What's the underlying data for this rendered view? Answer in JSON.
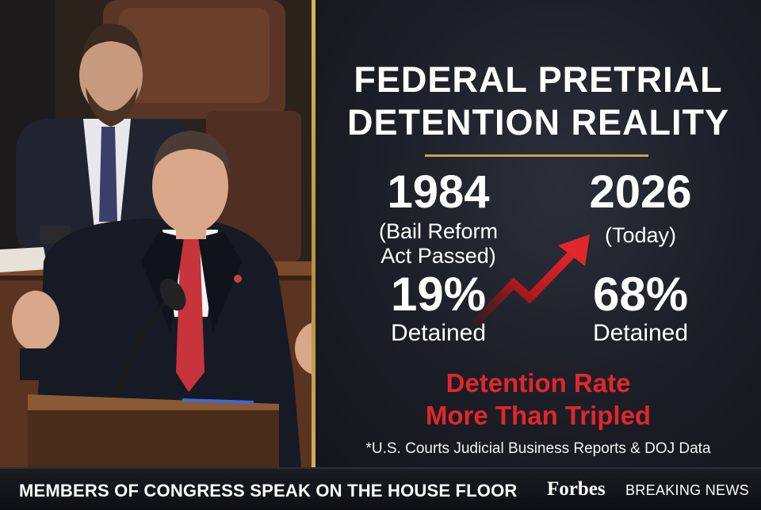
{
  "panel": {
    "title_line1": "FEDERAL PRETRIAL",
    "title_line2": "DETENTION REALITY",
    "left": {
      "year": "1984",
      "label_line1": "(Bail Reform",
      "label_line2": "Act Passed)",
      "percent": "19%",
      "status": "Detained"
    },
    "right": {
      "year": "2026",
      "label": "(Today)",
      "percent": "68%",
      "status": "Detained"
    },
    "headline_line1": "Detention Rate",
    "headline_line2": "More Than Tripled",
    "source": "*U.S. Courts Judicial Business Reports & DOJ Data"
  },
  "banner": {
    "caption": "MEMBERS OF CONGRESS SPEAK ON THE HOUSE FLOOR",
    "brand": "Forbes",
    "tag": "BREAKING NEWS"
  },
  "photo": {
    "subject": "speaker-at-podium",
    "icon": "person-speaking-icon"
  },
  "colors": {
    "accent_red": "#e3262a",
    "gold": "#c9a24c",
    "panel_bg": "#1b1e26"
  }
}
